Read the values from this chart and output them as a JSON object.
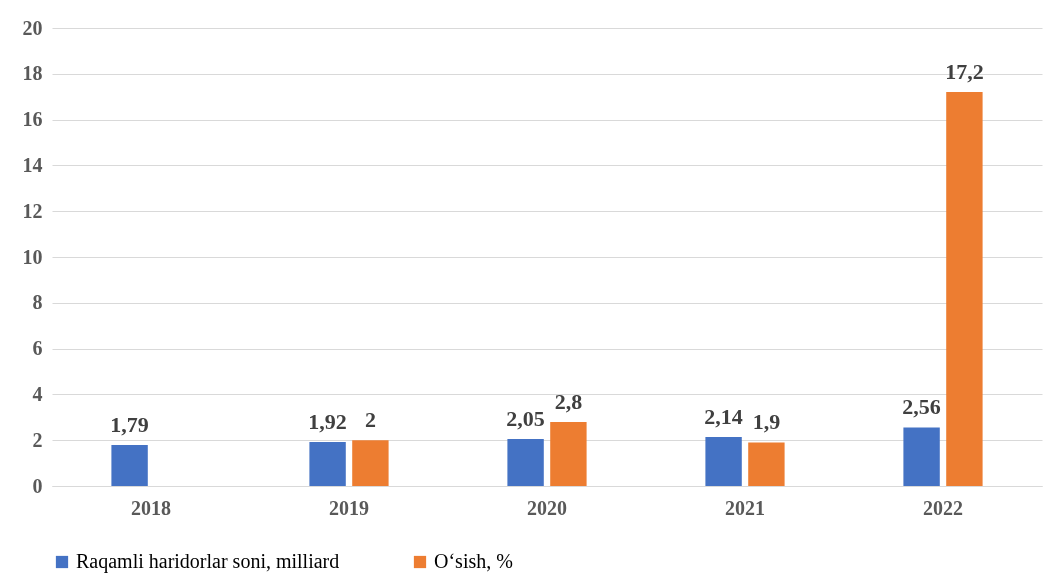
{
  "chart_data": {
    "type": "bar",
    "categories": [
      "2018",
      "2019",
      "2020",
      "2021",
      "2022"
    ],
    "series": [
      {
        "name": "Raqamli haridorlar soni, milliard",
        "color": "#4472c4",
        "values": [
          1.79,
          1.92,
          2.05,
          2.14,
          2.56
        ],
        "value_labels": [
          "1,79",
          "1,92",
          "2,05",
          "2,14",
          "2,56"
        ]
      },
      {
        "name": "O‘sish, %",
        "color": "#ed7d31",
        "values": [
          null,
          2,
          2.8,
          1.9,
          17.2
        ],
        "value_labels": [
          null,
          "2",
          "2,8",
          "1,9",
          "17,2"
        ]
      }
    ],
    "ylim": [
      0,
      20
    ],
    "yticks": [
      0,
      2,
      4,
      6,
      8,
      10,
      12,
      14,
      16,
      18,
      20
    ],
    "grid": "y",
    "legend": "bottom"
  }
}
